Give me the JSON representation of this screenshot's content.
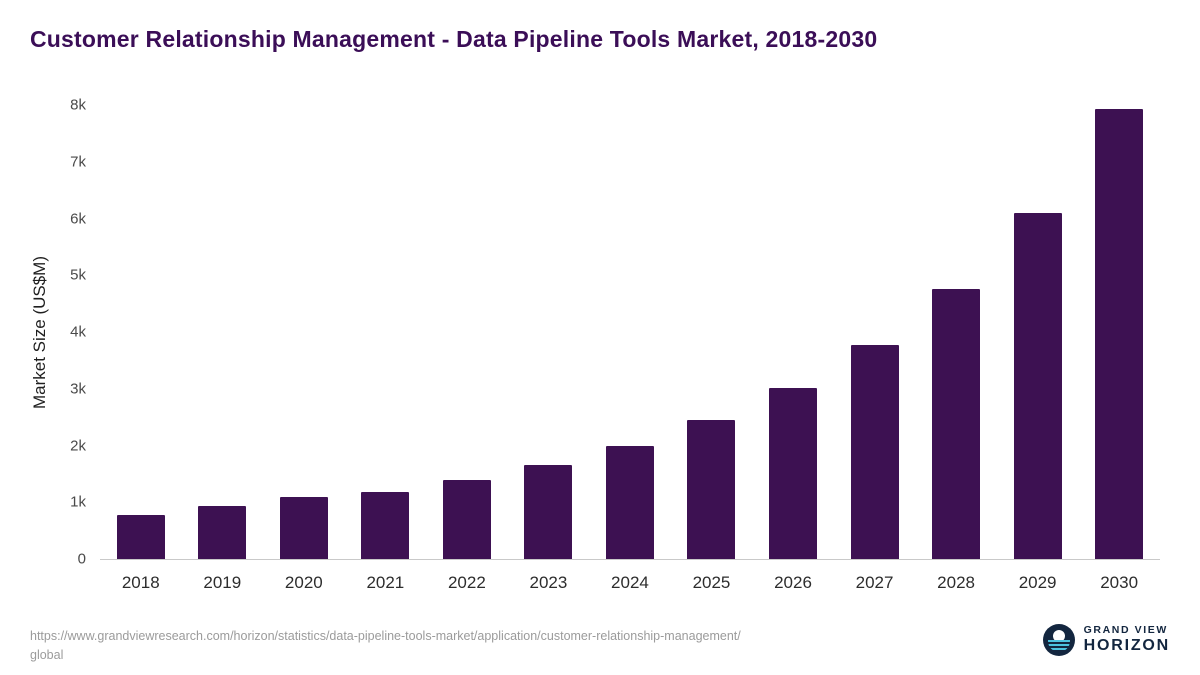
{
  "chart_data": {
    "type": "bar",
    "title": "Customer Relationship Management - Data Pipeline Tools Market, 2018-2030",
    "xlabel": "",
    "ylabel": "Market Size (US$M)",
    "categories": [
      "2018",
      "2019",
      "2020",
      "2021",
      "2022",
      "2023",
      "2024",
      "2025",
      "2026",
      "2027",
      "2028",
      "2029",
      "2030"
    ],
    "values": [
      780,
      930,
      1100,
      1180,
      1400,
      1660,
      2000,
      2450,
      3020,
      3780,
      4760,
      6100,
      7930
    ],
    "ylim": [
      0,
      8000
    ],
    "yticks": [
      {
        "value": 0,
        "label": "0"
      },
      {
        "value": 1000,
        "label": "1k"
      },
      {
        "value": 2000,
        "label": "2k"
      },
      {
        "value": 3000,
        "label": "3k"
      },
      {
        "value": 4000,
        "label": "4k"
      },
      {
        "value": 5000,
        "label": "5k"
      },
      {
        "value": 6000,
        "label": "6k"
      },
      {
        "value": 7000,
        "label": "7k"
      },
      {
        "value": 8000,
        "label": "8k"
      }
    ],
    "bar_color": "#3d1152",
    "grid": false,
    "legend": "none"
  },
  "footer": {
    "source_line1": "https://www.grandviewresearch.com/horizon/statistics/data-pipeline-tools-market/application/customer-relationship-management/",
    "source_line2": "global",
    "logo": {
      "top": "GRAND VIEW",
      "bottom": "HORIZON"
    }
  },
  "colors": {
    "title": "#3b0e57",
    "bar": "#3d1152",
    "navy": "#13263f",
    "cyan": "#4cc2e0"
  }
}
